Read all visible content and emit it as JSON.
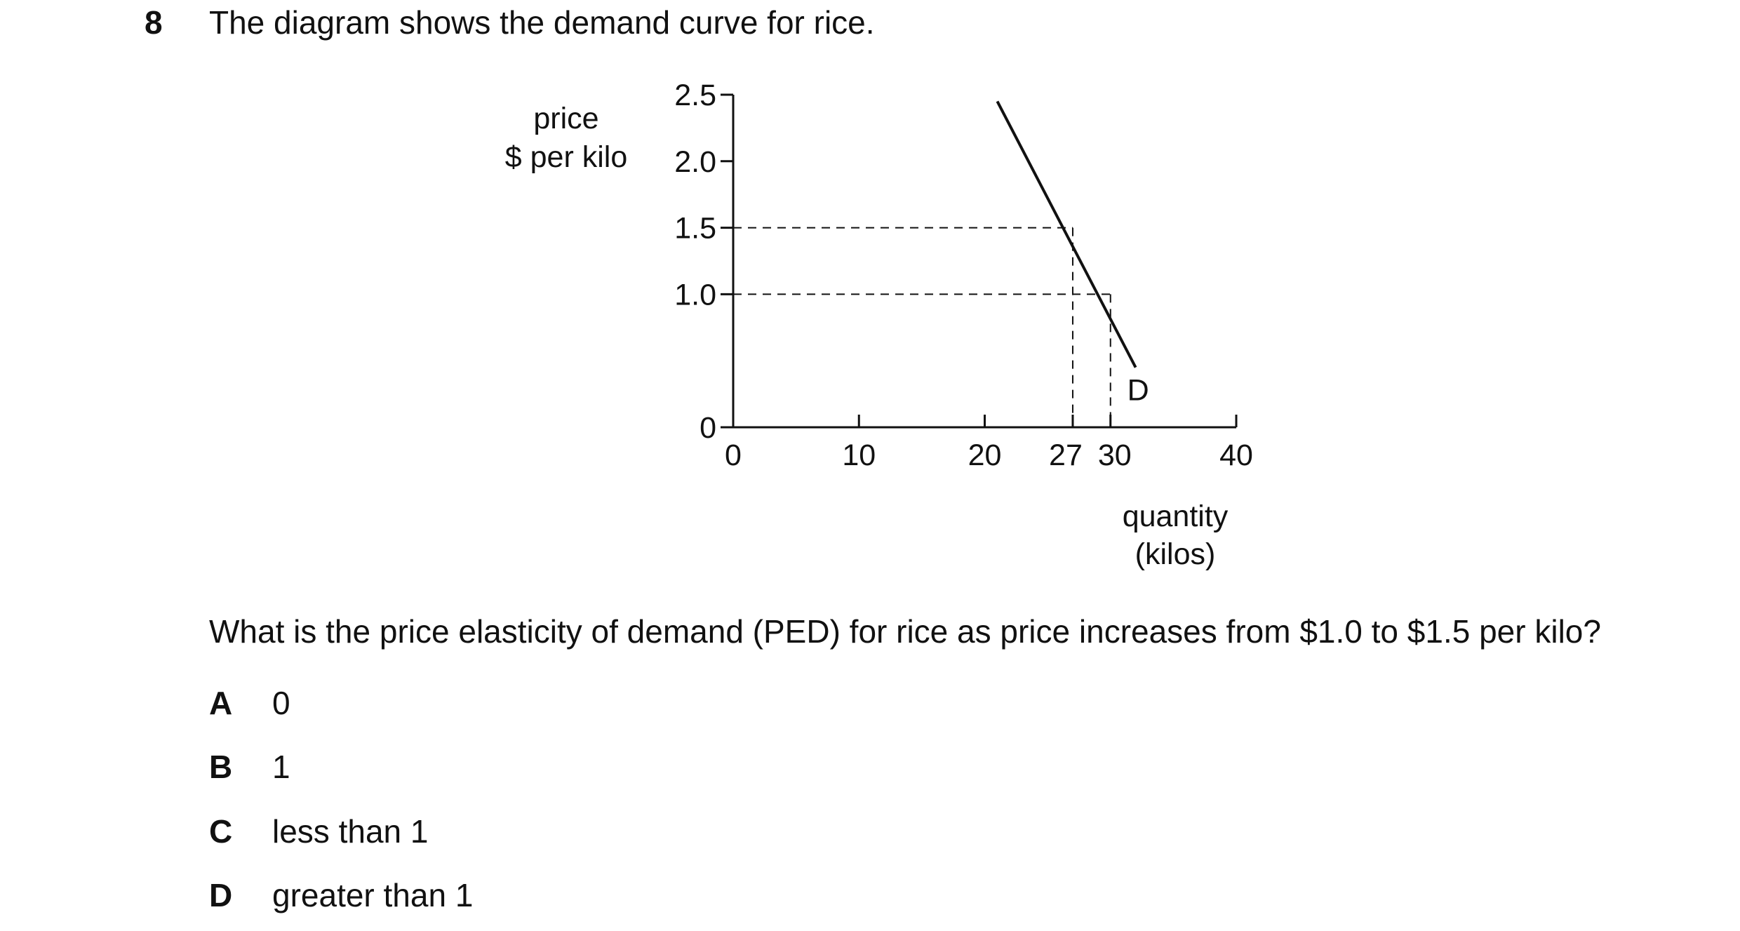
{
  "question_number": "8",
  "stem": "The diagram shows the demand curve for rice.",
  "chart_data": {
    "type": "line",
    "ylabel_lines": [
      "price",
      "$ per kilo"
    ],
    "xlabel_lines": [
      "quantity",
      "(kilos)"
    ],
    "x_ticks": [
      {
        "value": 0,
        "label": "0"
      },
      {
        "value": 10,
        "label": "10"
      },
      {
        "value": 20,
        "label": "20"
      },
      {
        "value": 27,
        "label": "27"
      },
      {
        "value": 30,
        "label": "30"
      },
      {
        "value": 40,
        "label": "40"
      }
    ],
    "y_ticks": [
      {
        "value": 0,
        "label": "0"
      },
      {
        "value": 1.0,
        "label": "1.0"
      },
      {
        "value": 1.5,
        "label": "1.5"
      },
      {
        "value": 2.0,
        "label": "2.0"
      },
      {
        "value": 2.5,
        "label": "2.5"
      }
    ],
    "xlim": [
      0,
      40
    ],
    "ylim": [
      0,
      2.5
    ],
    "series": [
      {
        "name": "D",
        "x": [
          21,
          32
        ],
        "y": [
          2.45,
          0.45
        ]
      }
    ],
    "reference_points": [
      {
        "x": 27,
        "y": 1.5
      },
      {
        "x": 30,
        "y": 1.0
      }
    ],
    "grid": false
  },
  "question": "What is the price elasticity of demand (PED) for rice as price increases from $1.0 to $1.5 per kilo?",
  "options": [
    {
      "letter": "A",
      "text": "0"
    },
    {
      "letter": "B",
      "text": "1"
    },
    {
      "letter": "C",
      "text": "less than 1"
    },
    {
      "letter": "D",
      "text": "greater than 1"
    }
  ]
}
